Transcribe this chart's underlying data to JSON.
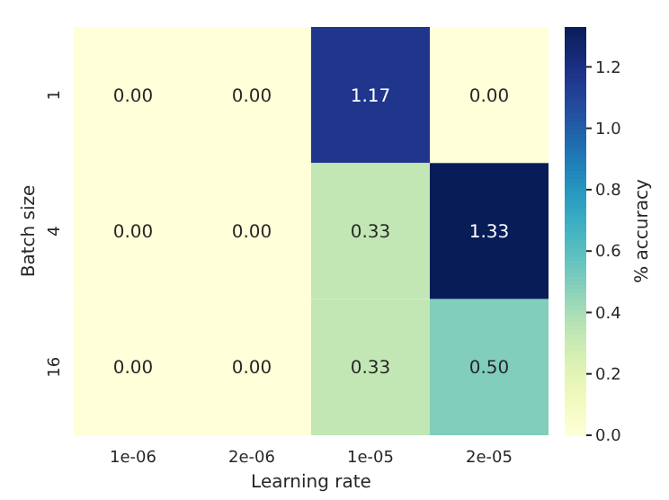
{
  "chart_data": {
    "type": "heatmap",
    "xlabel": "Learning rate",
    "ylabel": "Batch size",
    "clabel": "% accuracy",
    "categories": [
      "1e-06",
      "2e-06",
      "1e-05",
      "2e-05"
    ],
    "y_categories": [
      "1",
      "4",
      "16"
    ],
    "cells": [
      [
        0.0,
        0.0,
        1.17,
        0.0
      ],
      [
        0.0,
        0.0,
        0.33,
        1.33
      ],
      [
        0.0,
        0.0,
        0.33,
        0.5
      ]
    ],
    "cell_labels": [
      [
        "0.00",
        "0.00",
        "1.17",
        "0.00"
      ],
      [
        "0.00",
        "0.00",
        "0.33",
        "1.33"
      ],
      [
        "0.00",
        "0.00",
        "0.33",
        "0.50"
      ]
    ],
    "clim": [
      0,
      1.33
    ],
    "cticks": [
      {
        "value": 0,
        "label": "0.0"
      },
      {
        "value": 0.2,
        "label": "0.2"
      },
      {
        "value": 0.4,
        "label": "0.4"
      },
      {
        "value": 0.6,
        "label": "0.6"
      },
      {
        "value": 0.8,
        "label": "0.8"
      },
      {
        "value": 1.0,
        "label": "1.0"
      },
      {
        "value": 1.2,
        "label": "1.2"
      }
    ]
  }
}
